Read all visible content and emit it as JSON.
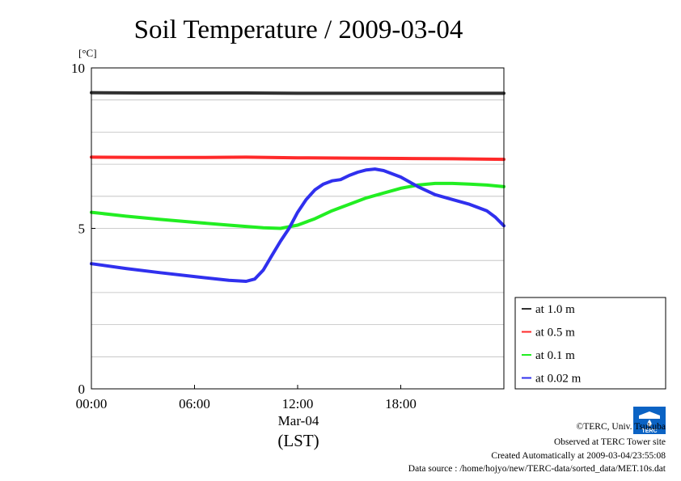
{
  "chart_data": {
    "type": "line",
    "title": "Soil Temperature / 2009-03-04",
    "ylabel": "[°C]",
    "ylim": [
      0,
      10
    ],
    "yticks": [
      "0",
      "5",
      "10"
    ],
    "xlim": [
      0,
      24
    ],
    "xticks": [
      "00:00",
      "06:00",
      "12:00",
      "18:00"
    ],
    "xdate": "Mar-04",
    "xunit": "(LST)",
    "grid": true,
    "legend_position": "bottom-right",
    "series": [
      {
        "name": "at 1.0 m",
        "color": "#303030",
        "x": [
          0,
          3,
          6,
          9,
          12,
          15,
          18,
          21,
          24
        ],
        "y": [
          9.23,
          9.22,
          9.22,
          9.22,
          9.21,
          9.21,
          9.21,
          9.21,
          9.21
        ]
      },
      {
        "name": "at 0.5 m",
        "color": "#ff2a2a",
        "x": [
          0,
          3,
          6,
          9,
          12,
          15,
          18,
          21,
          24
        ],
        "y": [
          7.22,
          7.21,
          7.21,
          7.22,
          7.2,
          7.19,
          7.18,
          7.17,
          7.15
        ]
      },
      {
        "name": "at 0.1 m",
        "color": "#22ee22",
        "x": [
          0,
          2,
          4,
          6,
          8,
          10,
          11,
          12,
          13,
          14,
          15,
          16,
          17,
          18,
          19,
          20,
          21,
          22,
          23,
          24
        ],
        "y": [
          5.5,
          5.38,
          5.28,
          5.19,
          5.1,
          5.02,
          5.0,
          5.1,
          5.3,
          5.55,
          5.75,
          5.95,
          6.1,
          6.25,
          6.35,
          6.4,
          6.4,
          6.38,
          6.35,
          6.3
        ]
      },
      {
        "name": "at 0.02 m",
        "color": "#3030ee",
        "x": [
          0,
          2,
          4,
          6,
          8,
          9,
          9.5,
          10,
          10.5,
          11,
          11.5,
          12,
          12.5,
          13,
          13.5,
          14,
          14.5,
          15,
          15.5,
          16,
          16.5,
          17,
          17.5,
          18,
          19,
          20,
          21,
          22,
          23,
          23.5,
          24
        ],
        "y": [
          3.9,
          3.75,
          3.62,
          3.5,
          3.38,
          3.35,
          3.42,
          3.7,
          4.15,
          4.6,
          5.0,
          5.5,
          5.9,
          6.2,
          6.38,
          6.48,
          6.52,
          6.65,
          6.75,
          6.82,
          6.85,
          6.8,
          6.7,
          6.6,
          6.3,
          6.05,
          5.9,
          5.75,
          5.55,
          5.35,
          5.08
        ]
      }
    ]
  },
  "credits": {
    "copyright": "©TERC, Univ. Tsukuba",
    "site": "Observed at TERC Tower site",
    "created": "Created Automatically at 2009-03-04/23:55:08",
    "source": "Data source : /home/hojyo/new/TERC-data/sorted_data/MET.10s.dat",
    "logo_text": "TERC"
  }
}
